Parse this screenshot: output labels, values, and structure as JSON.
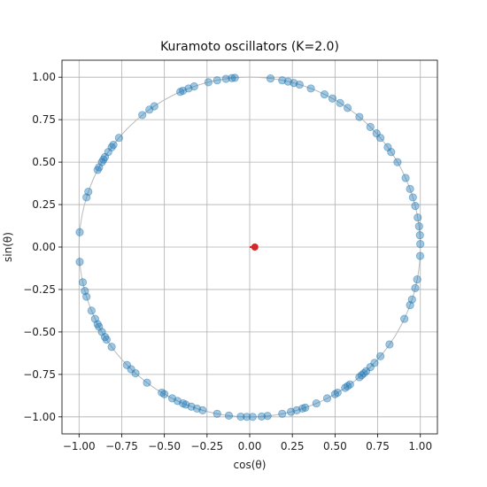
{
  "chart_data": {
    "type": "scatter",
    "title": "Kuramoto oscillators (K=2.0)",
    "xlabel": "cos(θ)",
    "ylabel": "sin(θ)",
    "xlim": [
      -1.1,
      1.1
    ],
    "ylim": [
      -1.1,
      1.1
    ],
    "xticks": [
      -1.0,
      -0.75,
      -0.5,
      -0.25,
      0.0,
      0.25,
      0.5,
      0.75,
      1.0
    ],
    "yticks": [
      -1.0,
      -0.75,
      -0.5,
      -0.25,
      0.0,
      0.25,
      0.5,
      0.75,
      1.0
    ],
    "xtick_labels": [
      "−1.00",
      "−0.75",
      "−0.50",
      "−0.25",
      "0.00",
      "0.25",
      "0.50",
      "0.75",
      "1.00"
    ],
    "ytick_labels": [
      "−1.00",
      "−0.75",
      "−0.50",
      "−0.25",
      "0.00",
      "0.25",
      "0.50",
      "0.75",
      "1.00"
    ],
    "grid": true,
    "unit_circle": true,
    "colors": {
      "oscillators": "#1f77b4",
      "order_parameter": "#d62728",
      "circle": "#bbbbbb"
    },
    "oscillator_angles_deg": [
      83,
      79,
      77,
      75,
      73,
      69,
      64,
      61,
      58,
      55,
      50,
      45,
      42,
      40,
      36,
      34,
      30,
      24,
      20,
      17,
      14,
      10,
      7,
      4,
      1,
      -3,
      -11,
      -14,
      -18,
      -20,
      -25,
      -35,
      -40,
      -43,
      -45,
      -47,
      -48,
      -49,
      -50,
      -54,
      -55,
      -56,
      -59,
      -60,
      -63,
      -67,
      -71,
      -72,
      -74,
      -76,
      -79,
      -84,
      -86,
      -89,
      -91,
      -93,
      -97,
      -101,
      -106,
      -108,
      -110,
      -112,
      -113,
      -115,
      -117,
      -120,
      -121,
      -127,
      -132,
      -134,
      -136,
      -144,
      -147,
      -148,
      -150,
      -152,
      -153,
      -155,
      -158,
      -163,
      -165,
      -168,
      -175,
      175,
      163,
      161,
      153,
      152,
      150,
      149,
      148,
      146,
      144,
      143,
      140,
      129,
      126,
      124,
      114,
      113,
      111,
      109,
      104,
      101,
      98,
      96,
      95
    ],
    "order_parameter": {
      "x": 0.03,
      "y": 0.0,
      "vector_from": [
        0,
        0
      ]
    }
  }
}
